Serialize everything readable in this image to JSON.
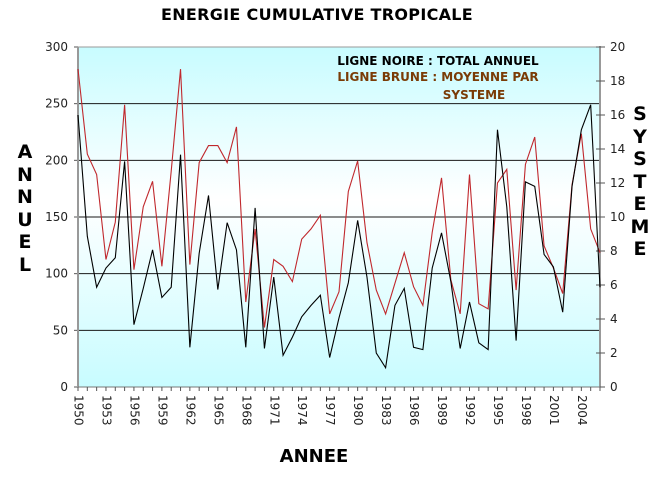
{
  "chart_data": {
    "type": "line",
    "title": "ENERGIE CUMULATIVE TROPICALE",
    "xlabel": "ANNEE",
    "ylabel_left": "ANNUEL",
    "ylabel_right": "SYSTEME",
    "ylim_left": [
      0,
      300
    ],
    "ylim_right": [
      0,
      20
    ],
    "yticks_left": [
      "0",
      "50",
      "100",
      "150",
      "200",
      "250",
      "300"
    ],
    "yticks_right": [
      "0",
      "2",
      "4",
      "6",
      "8",
      "10",
      "12",
      "14",
      "16",
      "18",
      "20"
    ],
    "xtick_labels": [
      "1950",
      "1953",
      "1956",
      "1959",
      "1962",
      "1965",
      "1968",
      "1971",
      "1974",
      "1977",
      "1980",
      "1983",
      "1986",
      "1989",
      "1992",
      "1995",
      "1998",
      "2001",
      "2004"
    ],
    "grid": true,
    "legend": {
      "position": "top-right",
      "line1": "LIGNE NOIRE : TOTAL ANNUEL",
      "line2a": "LIGNE BRUNE : MOYENNE PAR",
      "line2b": "SYSTEME"
    },
    "x": [
      1950,
      1951,
      1952,
      1953,
      1954,
      1955,
      1956,
      1957,
      1958,
      1959,
      1960,
      1961,
      1962,
      1963,
      1964,
      1965,
      1966,
      1967,
      1968,
      1969,
      1970,
      1971,
      1972,
      1973,
      1974,
      1975,
      1976,
      1977,
      1978,
      1979,
      1980,
      1981,
      1982,
      1983,
      1984,
      1985,
      1986,
      1987,
      1988,
      1989,
      1990,
      1991,
      1992,
      1993,
      1994,
      1995,
      1996,
      1997,
      1998,
      1999,
      2000,
      2001,
      2002,
      2003,
      2004,
      2005,
      2006
    ],
    "series": [
      {
        "name": "TOTAL ANNUEL",
        "axis": "left",
        "color": "#000000",
        "values": [
          240,
          133,
          88,
          105,
          114,
          199,
          55,
          87,
          121,
          79,
          88,
          205,
          35,
          118,
          169,
          86,
          145,
          121,
          35,
          158,
          34,
          97,
          28,
          44,
          62,
          72,
          81,
          26,
          61,
          92,
          147,
          97,
          30,
          17,
          72,
          87,
          35,
          33,
          105,
          136,
          93,
          34,
          75,
          39,
          33,
          227,
          159,
          41,
          181,
          177,
          117,
          106,
          66,
          177,
          227,
          249,
          88
        ]
      },
      {
        "name": "MOYENNE PAR SYSTEME",
        "axis": "right",
        "color": "#c0282d",
        "values": [
          18.7,
          13.7,
          12.5,
          7.5,
          9.7,
          16.6,
          6.9,
          10.6,
          12.1,
          7.1,
          12.7,
          18.7,
          7.2,
          13.2,
          14.2,
          14.2,
          13.2,
          15.3,
          5.0,
          9.3,
          3.5,
          7.5,
          7.1,
          6.2,
          8.7,
          9.3,
          10.1,
          4.3,
          5.6,
          11.5,
          13.3,
          8.5,
          5.7,
          4.3,
          6.1,
          7.9,
          5.9,
          4.8,
          9.1,
          12.3,
          6.3,
          4.3,
          12.5,
          4.9,
          4.6,
          12.0,
          12.8,
          5.7,
          13.1,
          14.7,
          8.3,
          7.0,
          5.5,
          11.9,
          14.9,
          9.3,
          7.9
        ]
      }
    ]
  },
  "colors": {
    "plot_bg_top": "#c8fcff",
    "plot_bg_mid": "#ffffff",
    "plot_bg_bottom": "#c8fcff",
    "legend_brown": "#7a3b06"
  }
}
